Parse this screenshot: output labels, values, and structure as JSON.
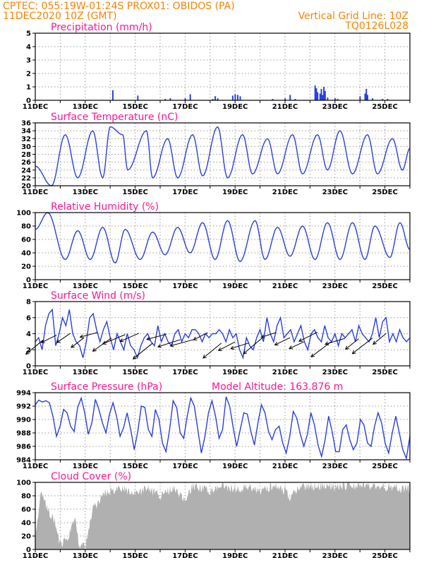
{
  "header": {
    "line1": "CPTEC:   055:19W-01:24S   PROX01: OBIDOS (PA)",
    "line2": "11DEC2020 10Z (GMT)",
    "grid_note": "Vertical Grid Line: 10Z",
    "code": "TQ0126L028"
  },
  "colors": {
    "header": "#ff8000",
    "title": "#ff1493",
    "series": "#2a3fe0",
    "cloud": "#b0b0b0",
    "wind_arrow": "#000000"
  },
  "x_ticks": [
    "11DEC",
    "13DEC",
    "15DEC",
    "17DEC",
    "19DEC",
    "21DEC",
    "23DEC",
    "25DEC"
  ],
  "chart_data": [
    {
      "type": "bar",
      "title": "Precipitation (mm/h)",
      "ylim": [
        0,
        5
      ],
      "y_ticks": [
        "0",
        "1",
        "2",
        "3",
        "4",
        "5"
      ],
      "x_start_day": 11,
      "x_end_day": 26,
      "grid": true,
      "x": [
        14.1,
        15.1,
        16.2,
        16.4,
        17.0,
        17.2,
        18.1,
        18.2,
        18.3,
        18.9,
        19.0,
        19.1,
        19.2,
        20.5,
        21.0,
        21.2,
        21.4,
        22.2,
        22.25,
        22.3,
        22.4,
        22.45,
        22.5,
        22.55,
        22.6,
        22.7,
        23.0,
        23.1,
        24.0,
        24.2,
        24.25,
        24.3,
        24.5,
        24.9,
        25.1
      ],
      "values": [
        0.75,
        0.35,
        0.1,
        0.15,
        0.15,
        0.45,
        0.1,
        0.3,
        0.15,
        0.35,
        0.45,
        0.4,
        0.3,
        0.1,
        0.15,
        0.4,
        0.1,
        1.1,
        0.9,
        0.6,
        0.5,
        0.85,
        0.4,
        1.0,
        0.7,
        0.2,
        0.15,
        0.1,
        0.3,
        0.5,
        0.85,
        0.4,
        0.15,
        0.1,
        0.1
      ]
    },
    {
      "type": "line",
      "title": "Surface Temperature (nC)",
      "ylim": [
        20,
        36
      ],
      "y_ticks": [
        "20",
        "22",
        "24",
        "26",
        "28",
        "30",
        "32",
        "34",
        "36"
      ],
      "grid": true,
      "x_start_day": 11,
      "x_end_day": 26,
      "mins": [
        [
          11.0,
          25
        ],
        [
          11.65,
          20
        ],
        [
          12.7,
          22
        ],
        [
          13.7,
          22
        ],
        [
          14.7,
          24
        ],
        [
          15.7,
          22
        ],
        [
          16.7,
          22
        ],
        [
          17.7,
          22.5
        ],
        [
          18.7,
          22
        ],
        [
          19.7,
          23
        ],
        [
          20.7,
          23
        ],
        [
          21.7,
          23
        ],
        [
          22.7,
          24
        ],
        [
          23.7,
          23
        ],
        [
          24.7,
          23
        ],
        [
          25.7,
          24
        ]
      ],
      "maxs": [
        [
          12.2,
          33
        ],
        [
          13.3,
          34
        ],
        [
          14.0,
          35
        ],
        [
          14.5,
          33
        ],
        [
          15.45,
          34
        ],
        [
          16.3,
          32
        ],
        [
          17.3,
          33
        ],
        [
          18.3,
          35
        ],
        [
          19.3,
          33
        ],
        [
          20.3,
          32
        ],
        [
          21.3,
          33
        ],
        [
          22.3,
          33
        ],
        [
          23.2,
          34
        ],
        [
          24.3,
          33
        ],
        [
          25.3,
          32
        ],
        [
          26.0,
          29.5
        ]
      ]
    },
    {
      "type": "line",
      "title": "Relative Humidity (%)",
      "ylim": [
        0,
        100
      ],
      "y_ticks": [
        "0",
        "20",
        "40",
        "60",
        "80",
        "100"
      ],
      "grid": true,
      "x_start_day": 11,
      "x_end_day": 26,
      "maxs": [
        [
          11.0,
          75
        ],
        [
          11.5,
          100
        ],
        [
          12.7,
          73
        ],
        [
          13.7,
          78
        ],
        [
          14.6,
          75
        ],
        [
          15.7,
          71
        ],
        [
          16.7,
          78
        ],
        [
          17.7,
          85
        ],
        [
          18.7,
          88
        ],
        [
          19.8,
          88
        ],
        [
          20.7,
          78
        ],
        [
          21.7,
          80
        ],
        [
          22.7,
          85
        ],
        [
          23.7,
          85
        ],
        [
          24.6,
          80
        ],
        [
          25.6,
          85
        ]
      ],
      "mins": [
        [
          12.2,
          30
        ],
        [
          13.2,
          30
        ],
        [
          14.2,
          25
        ],
        [
          15.2,
          30
        ],
        [
          16.2,
          37
        ],
        [
          17.2,
          40
        ],
        [
          18.2,
          30
        ],
        [
          19.2,
          27
        ],
        [
          20.2,
          30
        ],
        [
          21.2,
          35
        ],
        [
          22.2,
          30
        ],
        [
          23.2,
          30
        ],
        [
          24.2,
          30
        ],
        [
          25.2,
          33
        ],
        [
          26.0,
          45
        ]
      ]
    },
    {
      "type": "line",
      "title": "Surface Wind (m/s)",
      "ylim": [
        0,
        8
      ],
      "y_ticks": [
        "0",
        "2",
        "4",
        "6",
        "8"
      ],
      "grid": true,
      "x_start_day": 11,
      "x_end_day": 26,
      "values": [
        3,
        3.5,
        2,
        5,
        6.5,
        7,
        2.5,
        4,
        6,
        5,
        7,
        4,
        3,
        2.5,
        1,
        3,
        6,
        6.5,
        4.5,
        3,
        4.5,
        5.5,
        3.5,
        2,
        4,
        3,
        2,
        4,
        2.5,
        2,
        1,
        2.5,
        3.5,
        4,
        3,
        2.5,
        5,
        3,
        4,
        3,
        2.5,
        4,
        4.5,
        3,
        4,
        3.5,
        4.5,
        4.5,
        4,
        3,
        4,
        3.5,
        4,
        4,
        4.5,
        4,
        3,
        4.5,
        3.5,
        4,
        2,
        1,
        3.5,
        2.5,
        2,
        3.5,
        4.5,
        3,
        6,
        4,
        3,
        5,
        6,
        3.5,
        4,
        4.5,
        3,
        4,
        5,
        3,
        2,
        4,
        4.5,
        3.5,
        3,
        5,
        3.5,
        3,
        4,
        2.5,
        4,
        3.5,
        4,
        4.5,
        3,
        5,
        4,
        3.5,
        3,
        4,
        6,
        3.5,
        5.5,
        6,
        3,
        4,
        3,
        4.5,
        3.5,
        3,
        3.5
      ],
      "arrow_note": "wind direction vectors"
    },
    {
      "type": "line",
      "title": "Surface Pressure (hPa)",
      "ylim": [
        984,
        994
      ],
      "y_ticks": [
        "984",
        "986",
        "988",
        "990",
        "992",
        "994"
      ],
      "grid": true,
      "annotation": "Model Altitude: 163.876 m",
      "x_start_day": 11,
      "x_end_day": 26,
      "values": [
        992.2,
        992.9,
        992.6,
        992.8,
        992.5,
        990.5,
        987.5,
        989,
        991.5,
        991,
        989,
        988.2,
        991.8,
        993.2,
        991,
        987.8,
        989.5,
        993,
        991.5,
        989.5,
        988,
        990.8,
        992.5,
        990.5,
        987.5,
        988.8,
        991,
        988.5,
        985.5,
        988.2,
        992,
        991.8,
        988.5,
        987.5,
        991.5,
        990,
        986.5,
        985.2,
        988.5,
        992.8,
        991.8,
        988,
        987.2,
        990.5,
        993.2,
        992,
        988.5,
        985,
        987.5,
        991,
        992.8,
        990.5,
        987.2,
        988.5,
        993.4,
        992,
        988.8,
        986,
        988.5,
        991,
        990.8,
        988.2,
        986.2,
        989.5,
        992.2,
        991,
        988.2,
        987,
        988.5,
        989,
        986.5,
        985,
        987.5,
        991.2,
        990.2,
        987.8,
        986,
        987.8,
        991,
        989.2,
        986.2,
        984.5,
        987,
        990.5,
        988.2,
        985.2,
        985.2,
        988.5,
        989.2,
        987,
        985.5,
        986.5,
        990,
        989.2,
        986.5,
        986,
        989,
        991,
        989.5,
        986.5,
        985,
        988,
        990.5,
        988,
        985.5,
        984.2,
        987.5
      ],
      "clip_below": 984
    },
    {
      "type": "area",
      "title": "Cloud Cover (%)",
      "ylim": [
        0,
        100
      ],
      "y_ticks": [
        "0",
        "20",
        "40",
        "60",
        "80",
        "100"
      ],
      "grid": true,
      "x_start_day": 11,
      "x_end_day": 26,
      "profile": [
        [
          11.0,
          10
        ],
        [
          11.2,
          85
        ],
        [
          11.5,
          60
        ],
        [
          11.8,
          40
        ],
        [
          12.0,
          5
        ],
        [
          12.3,
          15
        ],
        [
          12.6,
          50
        ],
        [
          12.75,
          8
        ],
        [
          12.9,
          10
        ],
        [
          13.0,
          2
        ],
        [
          13.3,
          60
        ],
        [
          13.8,
          85
        ],
        [
          14.5,
          92
        ],
        [
          15.0,
          82
        ],
        [
          15.5,
          90
        ],
        [
          16.0,
          80
        ],
        [
          16.5,
          92
        ],
        [
          17.0,
          75
        ],
        [
          17.3,
          95
        ],
        [
          18.0,
          88
        ],
        [
          18.5,
          95
        ],
        [
          19.0,
          90
        ],
        [
          19.5,
          93
        ],
        [
          20.0,
          85
        ],
        [
          20.5,
          95
        ],
        [
          21.0,
          88
        ],
        [
          21.2,
          75
        ],
        [
          21.5,
          92
        ],
        [
          22.0,
          95
        ],
        [
          23.0,
          93
        ],
        [
          24.0,
          95
        ],
        [
          25.0,
          93
        ],
        [
          26.0,
          90
        ]
      ]
    }
  ]
}
